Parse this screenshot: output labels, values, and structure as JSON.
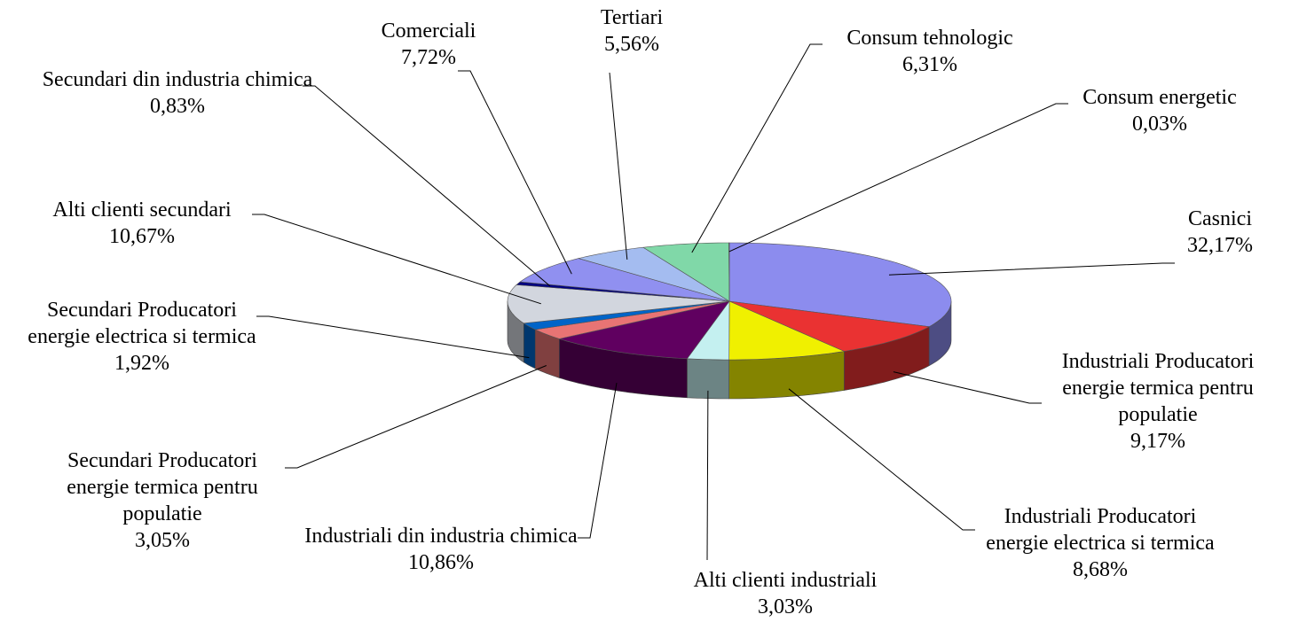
{
  "chart_data": {
    "type": "pie3d",
    "categories": [
      "Casnici",
      "Industriali Producatori energie termica pentru populatie",
      "Industriali Producatori energie electrica si termica",
      "Alti clienti industriali",
      "Industriali din industria chimica",
      "Secundari Producatori energie termica pentru populatie",
      "Secundari Producatori energie electrica si termica",
      "Alti clienti secundari",
      "Secundari din industria chimica",
      "Comerciali",
      "Tertiari",
      "Consum tehnologic",
      "Consum energetic"
    ],
    "values": [
      32.17,
      9.17,
      8.68,
      3.03,
      10.86,
      3.05,
      1.92,
      10.67,
      0.83,
      7.72,
      5.56,
      6.31,
      0.03
    ],
    "value_labels": [
      "32,17%",
      "9,17%",
      "8,68%",
      "3,03%",
      "10,86%",
      "3,05%",
      "1,92%",
      "10,67%",
      "0,83%",
      "7,72%",
      "5,56%",
      "6,31%",
      "0,03%"
    ],
    "colors": [
      "#8c8cee",
      "#ea3232",
      "#f0f000",
      "#c4f0f0",
      "#600060",
      "#e87474",
      "#0064c8",
      "#d2d6de",
      "#000080",
      "#9090f0",
      "#a4bcf0",
      "#80d8a8",
      "#60c0c0"
    ]
  }
}
